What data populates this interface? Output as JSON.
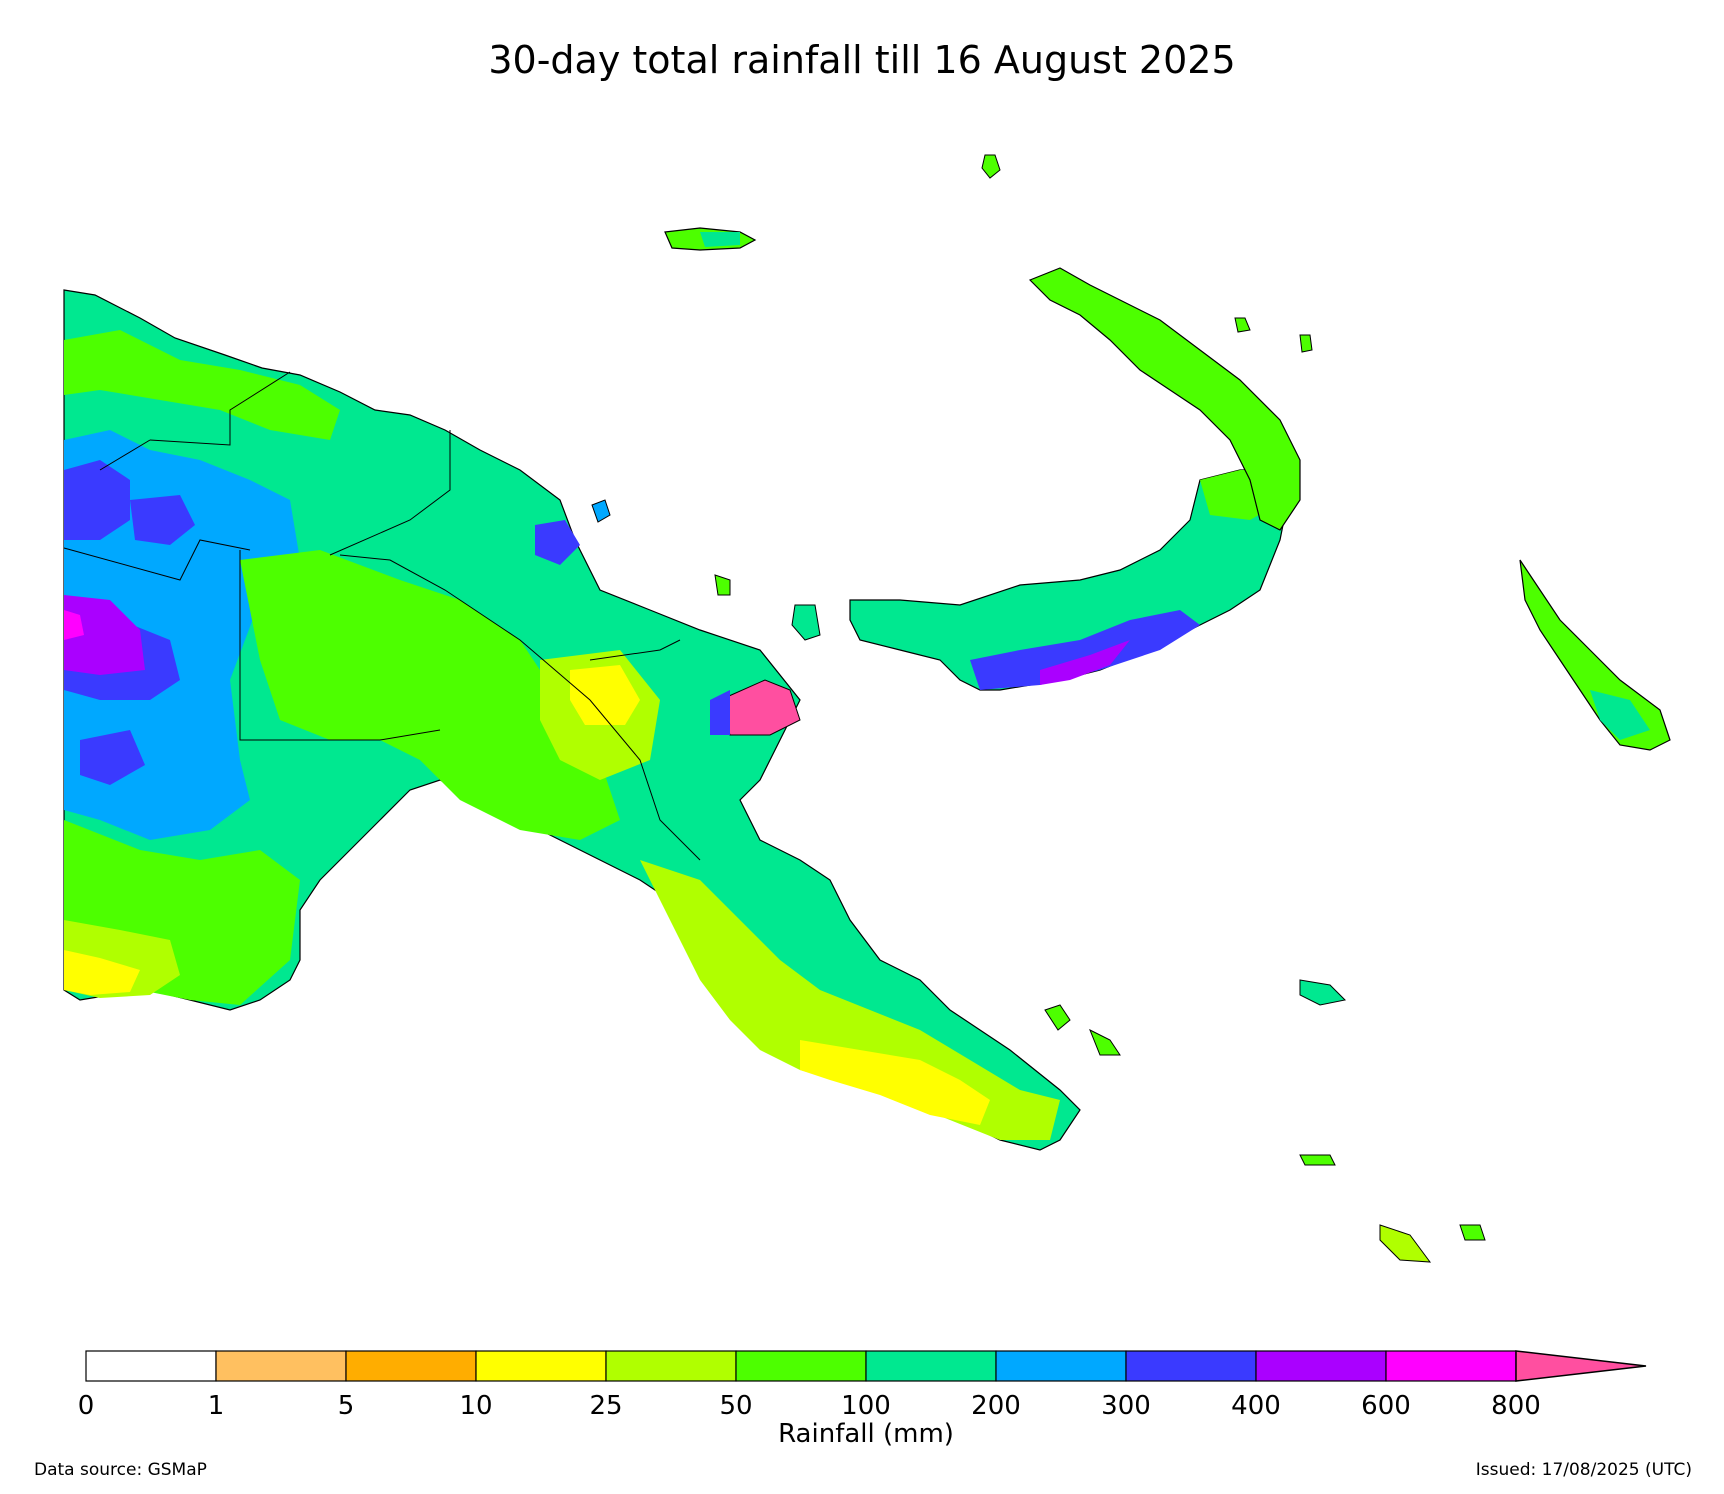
{
  "title": "30-day total rainfall till 16 August 2025",
  "legend": {
    "label": "Rainfall (mm)",
    "ticks": [
      "0",
      "1",
      "5",
      "10",
      "25",
      "50",
      "100",
      "200",
      "300",
      "400",
      "600",
      "800"
    ],
    "colors": [
      "#ffffff",
      "#ffc060",
      "#ffad00",
      "#ffff00",
      "#b0ff00",
      "#4dff00",
      "#00e890",
      "#00a8ff",
      "#3a3aff",
      "#aa00ff",
      "#ff00ff"
    ],
    "overflow_color": "#ff4fa0"
  },
  "map": {
    "region_colors": {
      "land_base": "#00e890",
      "moderate": "#4dff00",
      "light": "#b0ff00",
      "dry": "#ffff00",
      "very_dry": "#ffad00",
      "wet": "#00a8ff",
      "very_wet": "#3a3aff",
      "extreme": "#aa00ff",
      "peak": "#ff4fa0"
    }
  },
  "footer": {
    "source": "Data source: GSMaP",
    "issued": "Issued: 17/08/2025 (UTC)"
  }
}
